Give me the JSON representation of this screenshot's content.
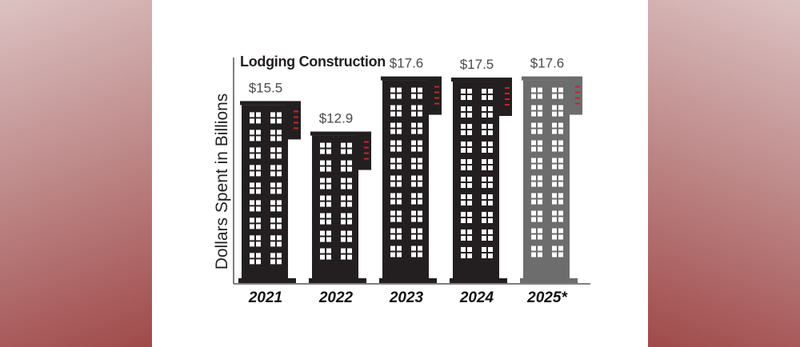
{
  "colors": {
    "building": "#231f20",
    "building_projected": "#6d6d6d",
    "window": "#ffffff",
    "accent": "#c0282d",
    "background": "#ffffff"
  },
  "chart_data": {
    "type": "bar",
    "title": "Lodging Construction",
    "xlabel": "",
    "ylabel": "Dollars Spent in Billions",
    "categories": [
      "2021",
      "2022",
      "2023",
      "2024",
      "2025*"
    ],
    "values": [
      15.5,
      12.9,
      17.6,
      17.5,
      17.6
    ],
    "value_labels": [
      "$15.5",
      "$12.9",
      "$17.6",
      "$17.5",
      "$17.6"
    ],
    "projected": [
      false,
      false,
      false,
      false,
      true
    ],
    "ylim": [
      0,
      19
    ],
    "grid": false,
    "legend": "none"
  }
}
